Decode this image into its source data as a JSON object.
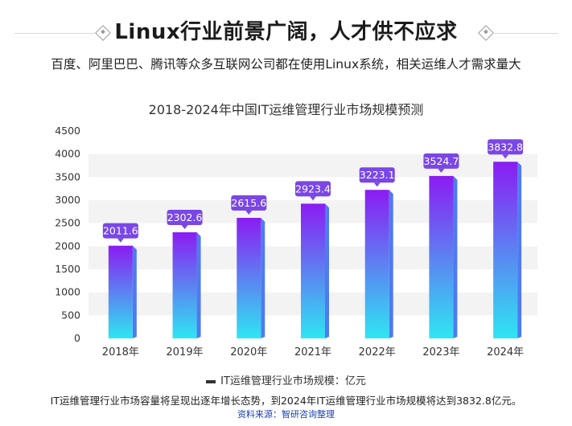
{
  "header": {
    "headline": "Linux行业前景广阔，人才供不应求",
    "subtitle": "百度、阿里巴巴、腾讯等众多互联网公司都在使用Linux系统，相关运维人才需求量大"
  },
  "chart_data": {
    "type": "bar",
    "title": "2018-2024年中国IT运维管理行业市场规模预测",
    "categories": [
      "2018年",
      "2019年",
      "2020年",
      "2021年",
      "2022年",
      "2023年",
      "2024年"
    ],
    "series": [
      {
        "name": "IT运维管理行业市场规模：亿元",
        "values": [
          2011.6,
          2302.6,
          2615.6,
          2923.4,
          3223.1,
          3524.7,
          3832.8
        ]
      }
    ],
    "data_labels": [
      "2011.6",
      "2302.6",
      "2615.6",
      "2923.4",
      "3223.1",
      "3524.7",
      "3832.8"
    ],
    "yticks": [
      "0",
      "500",
      "1000",
      "1500",
      "2000",
      "2500",
      "3000",
      "3500",
      "4000",
      "4500"
    ],
    "ylim": [
      0,
      4500
    ],
    "xlabel": "",
    "ylabel": "",
    "legend": "bottom",
    "grid": "alternating horizontal bands",
    "colors": {
      "bar_top": "#8b1cf2",
      "bar_bottom": "#2ee6f2",
      "bar_side": "#4f7af0",
      "label_bg": "#7a47e6",
      "band": "#f3f3f3"
    }
  },
  "footer": {
    "note": "IT运维管理行业市场容量将呈现出逐年增长态势，到2024年IT运维管理行业市场规模将达到3832.8亿元。",
    "source": "资料来源：智研咨询整理"
  }
}
